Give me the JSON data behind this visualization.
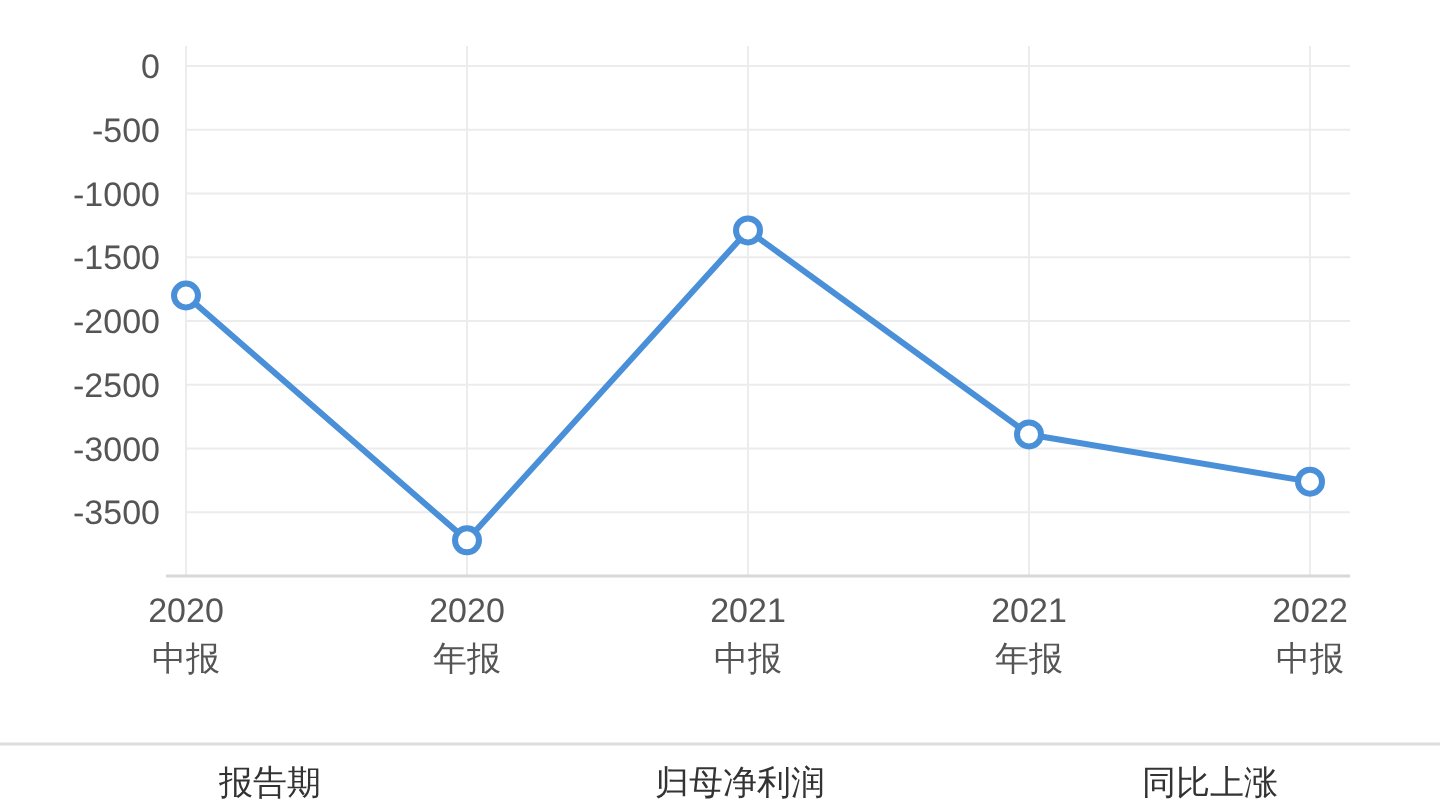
{
  "chart_data": {
    "type": "line",
    "categories": [
      "2020\n中报",
      "2020\n年报",
      "2021\n中报",
      "2021\n年报",
      "2022\n中报"
    ],
    "series": [
      {
        "color": "#4a90d9",
        "values": [
          -1800,
          -3720,
          -1290,
          -2890,
          -3260
        ]
      }
    ],
    "ylim": [
      -4000,
      0
    ],
    "yticks": [
      0,
      -500,
      -1000,
      -1500,
      -2000,
      -2500,
      -3000,
      -3500
    ],
    "grid": true,
    "marker": "circle",
    "line_style": "solid",
    "annotations": [
      "报告期",
      "归母净利润",
      "同比上涨"
    ]
  }
}
